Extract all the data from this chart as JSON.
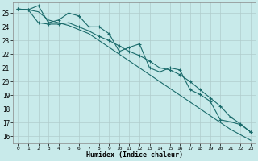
{
  "xlabel": "Humidex (Indice chaleur)",
  "ylabel": "",
  "background_color": "#c8eaea",
  "grid_color": "#b0cccc",
  "line_color": "#1a6b6b",
  "xlim": [
    -0.5,
    23.5
  ],
  "ylim": [
    15.5,
    25.8
  ],
  "x_ticks": [
    0,
    1,
    2,
    3,
    4,
    5,
    6,
    7,
    8,
    9,
    10,
    11,
    12,
    13,
    14,
    15,
    16,
    17,
    18,
    19,
    20,
    21,
    22,
    23
  ],
  "y_ticks": [
    16,
    17,
    18,
    19,
    20,
    21,
    22,
    23,
    24,
    25
  ],
  "line1_x": [
    0,
    1,
    2,
    3,
    4,
    5,
    6,
    7,
    8,
    9,
    10,
    11,
    12,
    13,
    14,
    15,
    16,
    17,
    18,
    19,
    20,
    21,
    22,
    23
  ],
  "line1_y": [
    25.3,
    25.25,
    25.55,
    24.3,
    24.5,
    25.0,
    24.8,
    24.0,
    24.0,
    23.5,
    22.2,
    22.5,
    22.75,
    21.0,
    20.7,
    21.0,
    20.85,
    19.4,
    19.05,
    18.55,
    17.2,
    17.05,
    16.85,
    16.3
  ],
  "line2_x": [
    0,
    1,
    2,
    3,
    4,
    5,
    6,
    7,
    8,
    9,
    10,
    11,
    12,
    13,
    14,
    15,
    16,
    17,
    18,
    19,
    20,
    21,
    22,
    23
  ],
  "line2_y": [
    25.3,
    25.25,
    24.3,
    24.2,
    24.2,
    24.3,
    24.0,
    23.7,
    23.3,
    23.0,
    22.6,
    22.2,
    21.9,
    21.5,
    21.0,
    20.85,
    20.5,
    20.0,
    19.4,
    18.8,
    18.2,
    17.4,
    16.9,
    16.3
  ],
  "line3_x": [
    0,
    1,
    2,
    3,
    4,
    5,
    6,
    7,
    8,
    9,
    10,
    11,
    12,
    13,
    14,
    15,
    16,
    17,
    18,
    19,
    20,
    21,
    22,
    23
  ],
  "line3_y": [
    25.3,
    25.25,
    25.1,
    24.5,
    24.3,
    24.1,
    23.8,
    23.5,
    23.0,
    22.5,
    22.0,
    21.5,
    21.0,
    20.5,
    20.0,
    19.5,
    19.0,
    18.5,
    18.0,
    17.5,
    17.0,
    16.5,
    16.1,
    15.7
  ]
}
